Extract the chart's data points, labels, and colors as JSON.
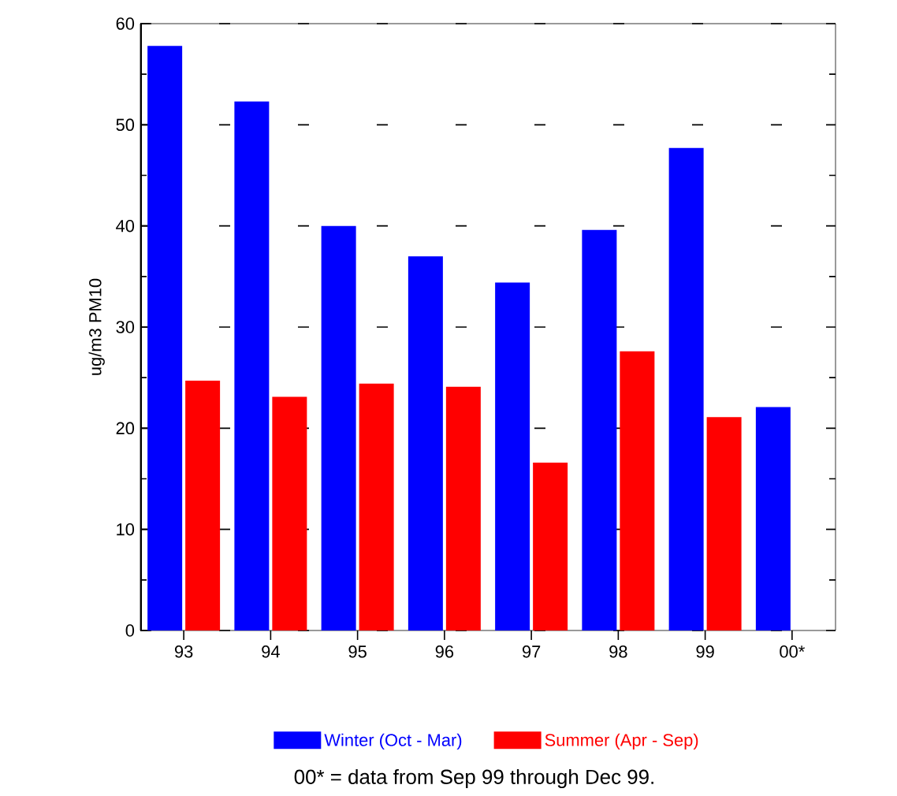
{
  "chart_data": {
    "type": "bar",
    "ylabel": "ug/m3 PM10",
    "categories": [
      "93",
      "94",
      "95",
      "96",
      "97",
      "98",
      "99",
      "00*"
    ],
    "series": [
      {
        "name": "Winter (Oct - Mar)",
        "color": "#0000ff",
        "values": [
          57.8,
          52.3,
          40,
          37,
          34.4,
          39.6,
          47.7,
          22.1
        ]
      },
      {
        "name": "Summer (Apr - Sep)",
        "color": "#ff0000",
        "values": [
          24.7,
          23.1,
          24.4,
          24.1,
          16.6,
          27.6,
          21.1,
          null
        ]
      }
    ],
    "ylim": [
      0,
      60
    ],
    "yticks": [
      0,
      10,
      20,
      30,
      40,
      50,
      60
    ],
    "grid": "y",
    "legend": "bottom",
    "annotations": [
      "00* = data from Sep 99 through Dec 99."
    ]
  }
}
